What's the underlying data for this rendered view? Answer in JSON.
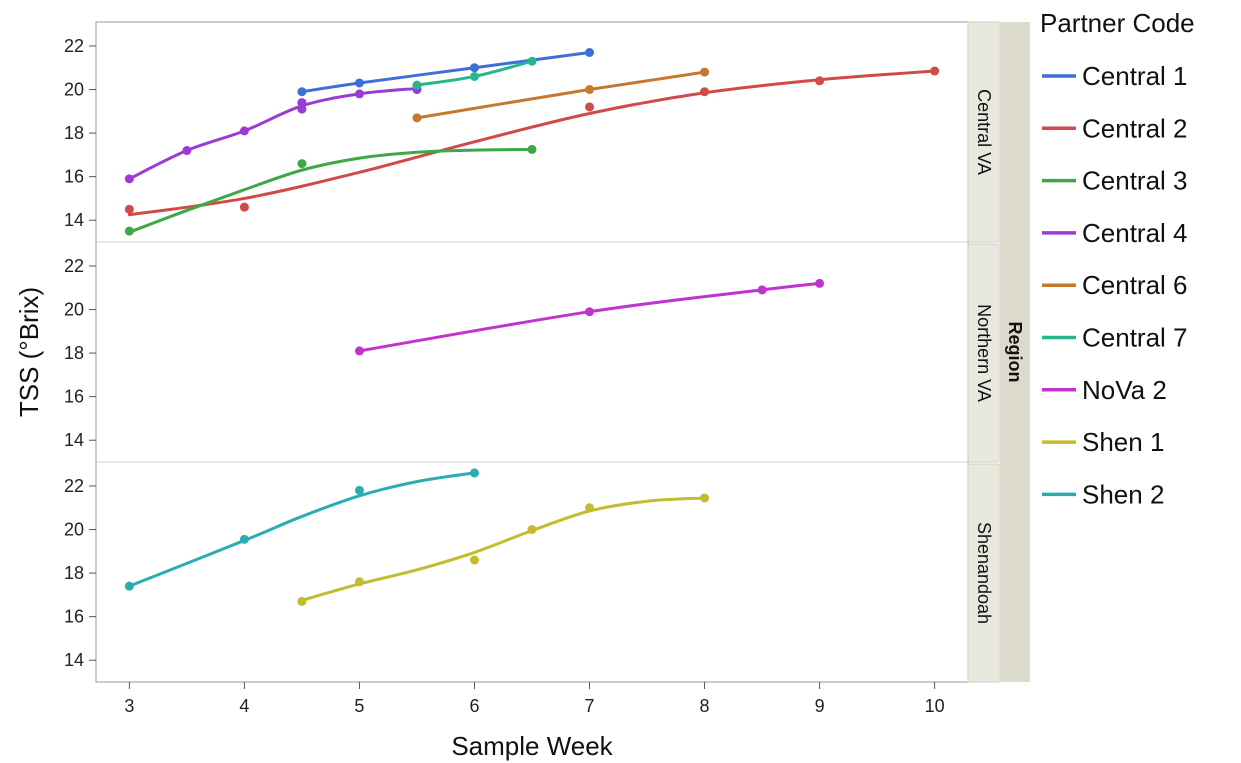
{
  "chart_data": {
    "type": "line",
    "xlabel": "Sample Week",
    "ylabel": "TSS (°Brix)",
    "facet_title": "Region",
    "legend_title": "Partner Code",
    "legend_position": "right",
    "grid": false,
    "x_ticks": [
      3,
      4,
      5,
      6,
      7,
      8,
      9,
      10
    ],
    "y_ticks": [
      14,
      16,
      18,
      20,
      22
    ],
    "xlim": [
      2.71,
      10.29
    ],
    "panels": [
      {
        "label": "Central VA",
        "ylim": [
          13.0,
          23.1
        ]
      },
      {
        "label": "Northern VA",
        "ylim": [
          13.0,
          23.1
        ]
      },
      {
        "label": "Shenandoah",
        "ylim": [
          13.0,
          23.1
        ]
      }
    ],
    "series": [
      {
        "name": "Central 1",
        "color": "#3E6FD8",
        "panel": 0,
        "points": [
          [
            4.5,
            19.9
          ],
          [
            5,
            20.3
          ],
          [
            6,
            21.0
          ],
          [
            7,
            21.7
          ]
        ],
        "curve": [
          [
            4.5,
            19.9
          ],
          [
            5,
            20.3
          ],
          [
            6,
            21.0
          ],
          [
            7,
            21.7
          ]
        ]
      },
      {
        "name": "Central 2",
        "color": "#D04A4A",
        "panel": 0,
        "points": [
          [
            3,
            14.5
          ],
          [
            4,
            14.6
          ],
          [
            7,
            19.2
          ],
          [
            8,
            19.9
          ],
          [
            9,
            20.4
          ],
          [
            10,
            20.85
          ]
        ],
        "curve": [
          [
            3,
            14.25
          ],
          [
            4,
            15.0
          ],
          [
            5,
            16.2
          ],
          [
            6,
            17.6
          ],
          [
            7,
            18.9
          ],
          [
            8,
            19.85
          ],
          [
            9,
            20.45
          ],
          [
            10,
            20.85
          ]
        ]
      },
      {
        "name": "Central 3",
        "color": "#3EA846",
        "panel": 0,
        "points": [
          [
            3,
            13.5
          ],
          [
            4.5,
            16.6
          ],
          [
            6.5,
            17.25
          ]
        ],
        "curve": [
          [
            3,
            13.45
          ],
          [
            3.5,
            14.45
          ],
          [
            4,
            15.4
          ],
          [
            4.5,
            16.3
          ],
          [
            5,
            16.85
          ],
          [
            5.5,
            17.12
          ],
          [
            6,
            17.22
          ],
          [
            6.5,
            17.25
          ]
        ]
      },
      {
        "name": "Central 4",
        "color": "#9A3CD4",
        "panel": 0,
        "points": [
          [
            3,
            15.9
          ],
          [
            3.5,
            17.2
          ],
          [
            4,
            18.1
          ],
          [
            4.5,
            19.4
          ],
          [
            4.5,
            19.1
          ],
          [
            5,
            19.8
          ],
          [
            5.5,
            20.0
          ]
        ],
        "curve": [
          [
            3,
            15.9
          ],
          [
            3.5,
            17.2
          ],
          [
            4,
            18.1
          ],
          [
            4.5,
            19.25
          ],
          [
            5,
            19.8
          ],
          [
            5.5,
            20.05
          ]
        ]
      },
      {
        "name": "Central 6",
        "color": "#C6782E",
        "panel": 0,
        "points": [
          [
            5.5,
            18.7
          ],
          [
            7,
            20.0
          ],
          [
            8,
            20.8
          ]
        ],
        "curve": [
          [
            5.5,
            18.7
          ],
          [
            7,
            20.0
          ],
          [
            8,
            20.8
          ]
        ]
      },
      {
        "name": "Central 7",
        "color": "#27B58F",
        "panel": 0,
        "points": [
          [
            5.5,
            20.2
          ],
          [
            6,
            20.6
          ],
          [
            6.5,
            21.3
          ]
        ],
        "curve": [
          [
            5.5,
            20.2
          ],
          [
            6,
            20.6
          ],
          [
            6.5,
            21.3
          ]
        ]
      },
      {
        "name": "NoVa 2",
        "color": "#C033CC",
        "panel": 1,
        "points": [
          [
            5,
            18.1
          ],
          [
            7,
            19.9
          ],
          [
            8.5,
            20.9
          ],
          [
            9,
            21.2
          ]
        ],
        "curve": [
          [
            5,
            18.1
          ],
          [
            7,
            19.9
          ],
          [
            8.5,
            20.9
          ],
          [
            9,
            21.2
          ]
        ]
      },
      {
        "name": "Shen 1",
        "color": "#C4BC2C",
        "panel": 2,
        "points": [
          [
            4.5,
            16.7
          ],
          [
            5,
            17.6
          ],
          [
            6,
            18.6
          ],
          [
            6.5,
            20.0
          ],
          [
            7,
            21.0
          ],
          [
            8,
            21.45
          ]
        ],
        "curve": [
          [
            4.5,
            16.75
          ],
          [
            5,
            17.5
          ],
          [
            5.5,
            18.15
          ],
          [
            6,
            18.95
          ],
          [
            6.5,
            19.95
          ],
          [
            7,
            20.85
          ],
          [
            7.5,
            21.3
          ],
          [
            8,
            21.45
          ]
        ]
      },
      {
        "name": "Shen 2",
        "color": "#2AADB0",
        "panel": 2,
        "points": [
          [
            3,
            17.4
          ],
          [
            4,
            19.55
          ],
          [
            5,
            21.8
          ],
          [
            6,
            22.6
          ]
        ],
        "curve": [
          [
            3,
            17.4
          ],
          [
            4,
            19.5
          ],
          [
            4.5,
            20.6
          ],
          [
            5,
            21.55
          ],
          [
            5.5,
            22.2
          ],
          [
            6,
            22.6
          ]
        ]
      }
    ]
  }
}
